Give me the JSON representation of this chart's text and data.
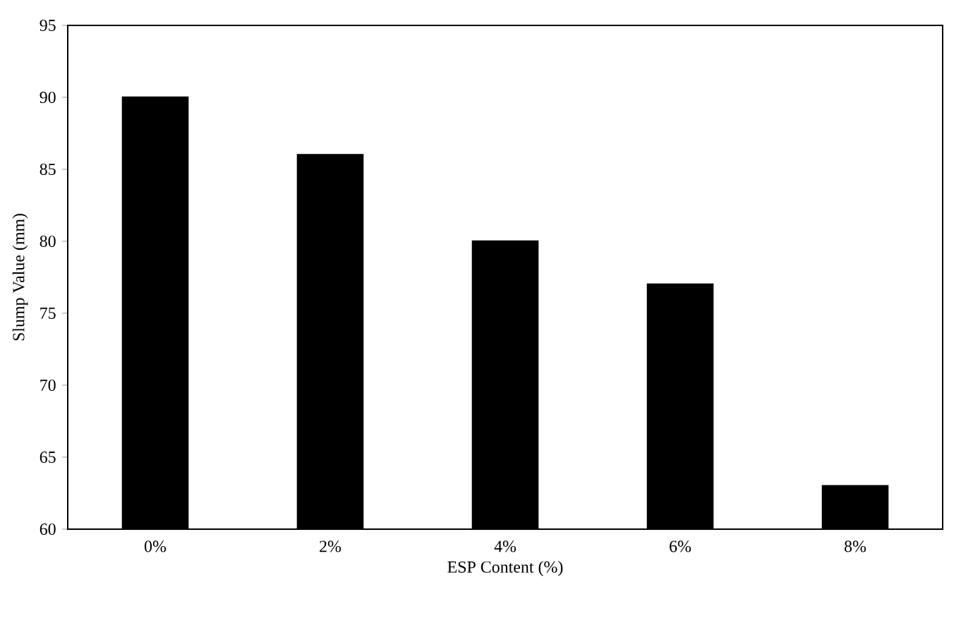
{
  "chart_data": {
    "type": "bar",
    "xlabel": "ESP Content (%)",
    "ylabel": "Slump Value (mm)",
    "categories": [
      "0%",
      "2%",
      "4%",
      "6%",
      "8%"
    ],
    "values": [
      90,
      86,
      80,
      77,
      63
    ],
    "color": "#000000",
    "ylim": [
      60,
      95
    ],
    "yticks": [
      60,
      65,
      70,
      75,
      80,
      85,
      90,
      95
    ]
  }
}
